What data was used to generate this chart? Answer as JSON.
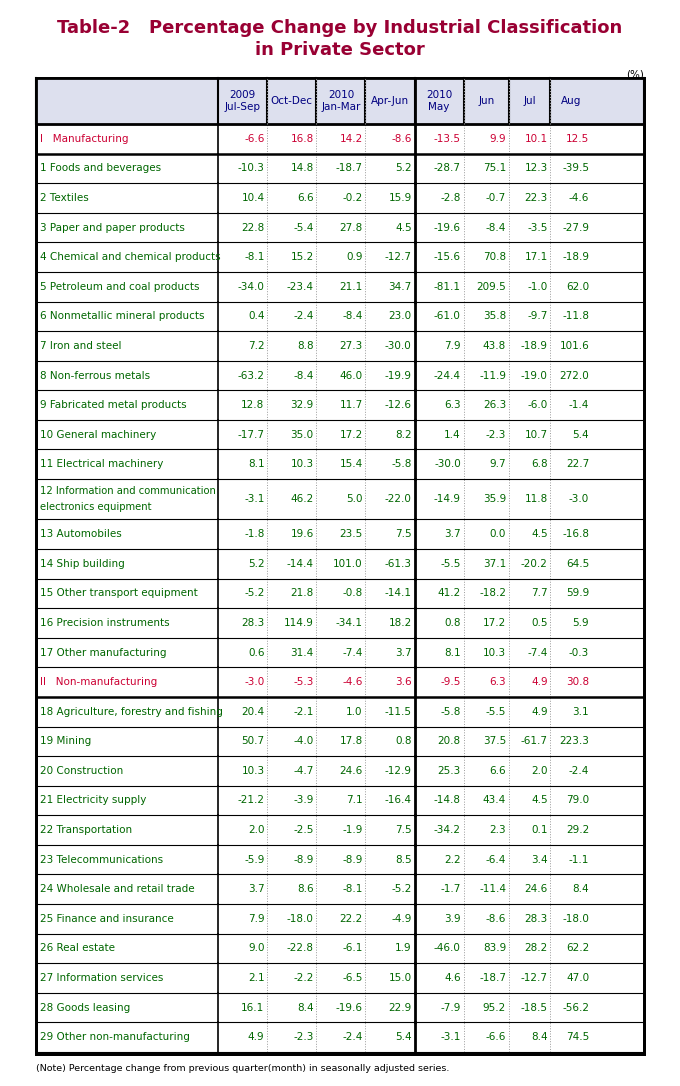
{
  "title_line1": "Table-2   Percentage Change by Industrial Classification",
  "title_line2": "in Private Sector",
  "title_color": "#990033",
  "note": "(Note) Percentage change from previous quarter(month) in seasonally adjusted series.",
  "rows": [
    {
      "label": "I   Manufacturing",
      "style": "section",
      "values": [
        "-6.6",
        "16.8",
        "14.2",
        "-8.6",
        "-13.5",
        "9.9",
        "10.1",
        "12.5"
      ]
    },
    {
      "label": "1 Foods and beverages",
      "style": "normal",
      "values": [
        "-10.3",
        "14.8",
        "-18.7",
        "5.2",
        "-28.7",
        "75.1",
        "12.3",
        "-39.5"
      ]
    },
    {
      "label": "2 Textiles",
      "style": "normal",
      "values": [
        "10.4",
        "6.6",
        "-0.2",
        "15.9",
        "-2.8",
        "-0.7",
        "22.3",
        "-4.6"
      ]
    },
    {
      "label": "3 Paper and paper products",
      "style": "normal",
      "values": [
        "22.8",
        "-5.4",
        "27.8",
        "4.5",
        "-19.6",
        "-8.4",
        "-3.5",
        "-27.9"
      ]
    },
    {
      "label": "4 Chemical and chemical products",
      "style": "normal",
      "values": [
        "-8.1",
        "15.2",
        "0.9",
        "-12.7",
        "-15.6",
        "70.8",
        "17.1",
        "-18.9"
      ]
    },
    {
      "label": "5 Petroleum and coal products",
      "style": "normal",
      "values": [
        "-34.0",
        "-23.4",
        "21.1",
        "34.7",
        "-81.1",
        "209.5",
        "-1.0",
        "62.0"
      ]
    },
    {
      "label": "6 Nonmetallic mineral products",
      "style": "normal",
      "values": [
        "0.4",
        "-2.4",
        "-8.4",
        "23.0",
        "-61.0",
        "35.8",
        "-9.7",
        "-11.8"
      ]
    },
    {
      "label": "7 Iron and steel",
      "style": "normal",
      "values": [
        "7.2",
        "8.8",
        "27.3",
        "-30.0",
        "7.9",
        "43.8",
        "-18.9",
        "101.6"
      ]
    },
    {
      "label": "8 Non-ferrous metals",
      "style": "normal",
      "values": [
        "-63.2",
        "-8.4",
        "46.0",
        "-19.9",
        "-24.4",
        "-11.9",
        "-19.0",
        "272.0"
      ]
    },
    {
      "label": "9 Fabricated metal products",
      "style": "normal",
      "values": [
        "12.8",
        "32.9",
        "11.7",
        "-12.6",
        "6.3",
        "26.3",
        "-6.0",
        "-1.4"
      ]
    },
    {
      "label": "10 General machinery",
      "style": "normal",
      "values": [
        "-17.7",
        "35.0",
        "17.2",
        "8.2",
        "1.4",
        "-2.3",
        "10.7",
        "5.4"
      ]
    },
    {
      "label": "11 Electrical machinery",
      "style": "normal",
      "values": [
        "8.1",
        "10.3",
        "15.4",
        "-5.8",
        "-30.0",
        "9.7",
        "6.8",
        "22.7"
      ]
    },
    {
      "label": "12 Information and communication\nelectronics equipment",
      "style": "normal_2line",
      "values": [
        "-3.1",
        "46.2",
        "5.0",
        "-22.0",
        "-14.9",
        "35.9",
        "11.8",
        "-3.0"
      ]
    },
    {
      "label": "13 Automobiles",
      "style": "normal",
      "values": [
        "-1.8",
        "19.6",
        "23.5",
        "7.5",
        "3.7",
        "0.0",
        "4.5",
        "-16.8"
      ]
    },
    {
      "label": "14 Ship building",
      "style": "normal",
      "values": [
        "5.2",
        "-14.4",
        "101.0",
        "-61.3",
        "-5.5",
        "37.1",
        "-20.2",
        "64.5"
      ]
    },
    {
      "label": "15 Other transport equipment",
      "style": "normal",
      "values": [
        "-5.2",
        "21.8",
        "-0.8",
        "-14.1",
        "41.2",
        "-18.2",
        "7.7",
        "59.9"
      ]
    },
    {
      "label": "16 Precision instruments",
      "style": "normal",
      "values": [
        "28.3",
        "114.9",
        "-34.1",
        "18.2",
        "0.8",
        "17.2",
        "0.5",
        "5.9"
      ]
    },
    {
      "label": "17 Other manufacturing",
      "style": "normal",
      "values": [
        "0.6",
        "31.4",
        "-7.4",
        "3.7",
        "8.1",
        "10.3",
        "-7.4",
        "-0.3"
      ]
    },
    {
      "label": "II   Non-manufacturing",
      "style": "section",
      "values": [
        "-3.0",
        "-5.3",
        "-4.6",
        "3.6",
        "-9.5",
        "6.3",
        "4.9",
        "30.8"
      ]
    },
    {
      "label": "18 Agriculture, forestry and fishing",
      "style": "normal",
      "values": [
        "20.4",
        "-2.1",
        "1.0",
        "-11.5",
        "-5.8",
        "-5.5",
        "4.9",
        "3.1"
      ]
    },
    {
      "label": "19 Mining",
      "style": "normal",
      "values": [
        "50.7",
        "-4.0",
        "17.8",
        "0.8",
        "20.8",
        "37.5",
        "-61.7",
        "223.3"
      ]
    },
    {
      "label": "20 Construction",
      "style": "normal",
      "values": [
        "10.3",
        "-4.7",
        "24.6",
        "-12.9",
        "25.3",
        "6.6",
        "2.0",
        "-2.4"
      ]
    },
    {
      "label": "21 Electricity supply",
      "style": "normal",
      "values": [
        "-21.2",
        "-3.9",
        "7.1",
        "-16.4",
        "-14.8",
        "43.4",
        "4.5",
        "79.0"
      ]
    },
    {
      "label": "22 Transportation",
      "style": "normal",
      "values": [
        "2.0",
        "-2.5",
        "-1.9",
        "7.5",
        "-34.2",
        "2.3",
        "0.1",
        "29.2"
      ]
    },
    {
      "label": "23 Telecommunications",
      "style": "normal",
      "values": [
        "-5.9",
        "-8.9",
        "-8.9",
        "8.5",
        "2.2",
        "-6.4",
        "3.4",
        "-1.1"
      ]
    },
    {
      "label": "24 Wholesale and retail trade",
      "style": "normal",
      "values": [
        "3.7",
        "8.6",
        "-8.1",
        "-5.2",
        "-1.7",
        "-11.4",
        "24.6",
        "8.4"
      ]
    },
    {
      "label": "25 Finance and insurance",
      "style": "normal",
      "values": [
        "7.9",
        "-18.0",
        "22.2",
        "-4.9",
        "3.9",
        "-8.6",
        "28.3",
        "-18.0"
      ]
    },
    {
      "label": "26 Real estate",
      "style": "normal",
      "values": [
        "9.0",
        "-22.8",
        "-6.1",
        "1.9",
        "-46.0",
        "83.9",
        "28.2",
        "62.2"
      ]
    },
    {
      "label": "27 Information services",
      "style": "normal",
      "values": [
        "2.1",
        "-2.2",
        "-6.5",
        "15.0",
        "4.6",
        "-18.7",
        "-12.7",
        "47.0"
      ]
    },
    {
      "label": "28 Goods leasing",
      "style": "normal",
      "values": [
        "16.1",
        "8.4",
        "-19.6",
        "22.9",
        "-7.9",
        "95.2",
        "-18.5",
        "-56.2"
      ]
    },
    {
      "label": "29 Other non-manufacturing",
      "style": "normal",
      "values": [
        "4.9",
        "-2.3",
        "-2.4",
        "5.4",
        "-3.1",
        "-6.6",
        "8.4",
        "74.5"
      ]
    }
  ],
  "section_text_color": "#cc0033",
  "normal_text_color": "#006600",
  "header_text_color": "#000080",
  "dotted_color": "#999999",
  "header_bg": "#dde0ee"
}
